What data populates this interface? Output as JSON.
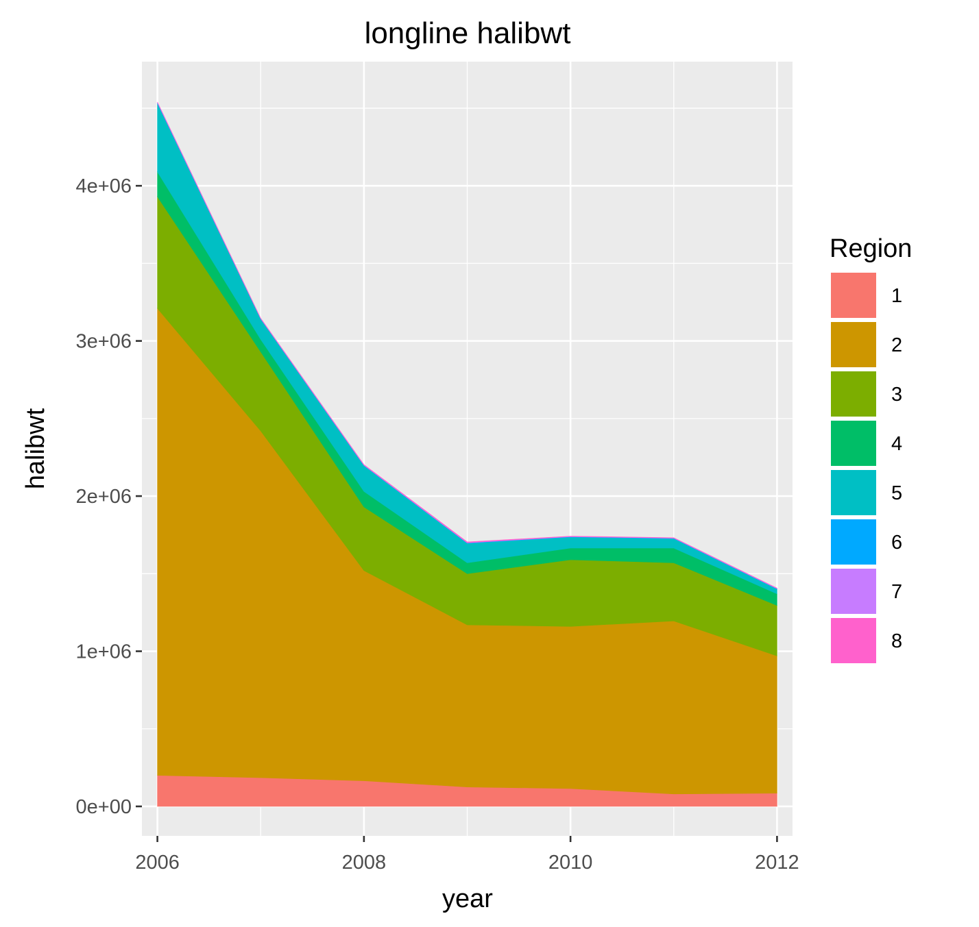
{
  "chart_data": {
    "type": "area",
    "stacked": true,
    "title": "longline halibwt",
    "xlabel": "year",
    "ylabel": "halibwt",
    "x": [
      2006,
      2007,
      2008,
      2009,
      2010,
      2011,
      2012
    ],
    "xticks": [
      2006,
      2008,
      2010,
      2012
    ],
    "xlim": [
      2005.85,
      2012.15
    ],
    "ylim": [
      -190000,
      4800000
    ],
    "yticks": [
      0,
      1000000,
      2000000,
      3000000,
      4000000
    ],
    "ytick_labels": [
      "0e+00",
      "1e+06",
      "2e+06",
      "3e+06",
      "4e+06"
    ],
    "grid": true,
    "legend": {
      "title": "Region",
      "position": "right"
    },
    "series": [
      {
        "name": "1",
        "color": "#F8766D",
        "values": [
          200000,
          185000,
          165000,
          125000,
          115000,
          80000,
          85000
        ]
      },
      {
        "name": "2",
        "color": "#CD9600",
        "values": [
          3010000,
          2235000,
          1355000,
          1045000,
          1045000,
          1115000,
          885000
        ]
      },
      {
        "name": "3",
        "color": "#7CAE00",
        "values": [
          720000,
          510000,
          410000,
          330000,
          430000,
          375000,
          325000
        ]
      },
      {
        "name": "4",
        "color": "#00BE67",
        "values": [
          160000,
          80000,
          100000,
          70000,
          75000,
          95000,
          75000
        ]
      },
      {
        "name": "5",
        "color": "#00BFC4",
        "values": [
          440000,
          130000,
          165000,
          125000,
          70000,
          60000,
          30000
        ]
      },
      {
        "name": "6",
        "color": "#00A9FF",
        "values": [
          5000,
          3000,
          3000,
          3000,
          3000,
          3000,
          3000
        ]
      },
      {
        "name": "7",
        "color": "#C77CFF",
        "values": [
          3000,
          2000,
          2000,
          2000,
          2000,
          2000,
          2000
        ]
      },
      {
        "name": "8",
        "color": "#FF61CC",
        "values": [
          2000,
          2000,
          3000,
          5000,
          2000,
          2000,
          2000
        ]
      }
    ]
  }
}
